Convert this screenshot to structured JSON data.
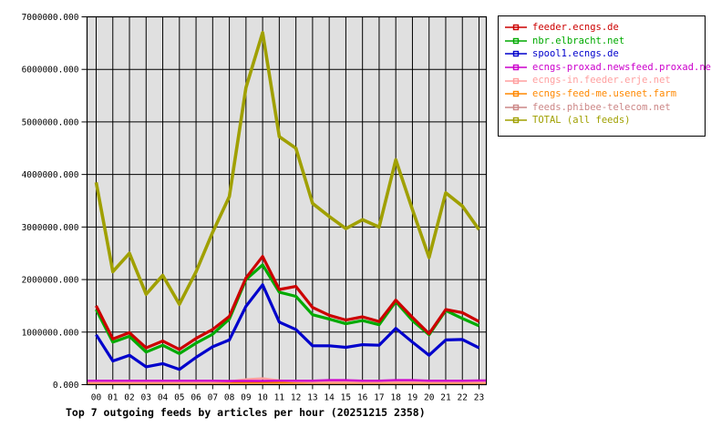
{
  "title": "Top 7 outgoing feeds by articles per hour (20251215 2358)",
  "chart_data": {
    "type": "line",
    "title": "Top 7 outgoing feeds by articles per hour (20251215 2358)",
    "xlabel": "",
    "ylabel": "",
    "ylim": [
      0,
      7000000
    ],
    "grid": true,
    "plot_bg": "#e0e0e0",
    "legend_position": "outside-top-right",
    "x": [
      0,
      1,
      2,
      3,
      4,
      5,
      6,
      7,
      8,
      9,
      10,
      11,
      12,
      13,
      14,
      15,
      16,
      17,
      18,
      19,
      20,
      21,
      22,
      23
    ],
    "x_tick_labels": [
      "00",
      "01",
      "02",
      "03",
      "04",
      "05",
      "06",
      "07",
      "08",
      "09",
      "10",
      "11",
      "12",
      "13",
      "14",
      "15",
      "16",
      "17",
      "18",
      "19",
      "20",
      "21",
      "22",
      "23"
    ],
    "y_tick_labels": [
      "0.000",
      "1000000.000",
      "2000000.000",
      "3000000.000",
      "4000000.000",
      "5000000.000",
      "6000000.000",
      "7000000.000"
    ],
    "series": [
      {
        "name": "feeder.ecngs.de",
        "color": "#cc0000",
        "full_width": false,
        "values": [
          1500000,
          870000,
          990000,
          700000,
          830000,
          670000,
          880000,
          1050000,
          1300000,
          2030000,
          2440000,
          1810000,
          1870000,
          1470000,
          1320000,
          1230000,
          1290000,
          1200000,
          1610000,
          1280000,
          970000,
          1430000,
          1370000,
          1200000
        ]
      },
      {
        "name": "nbr.elbracht.net",
        "color": "#00aa00",
        "full_width": false,
        "values": [
          1430000,
          810000,
          920000,
          620000,
          750000,
          590000,
          790000,
          960000,
          1250000,
          2000000,
          2280000,
          1760000,
          1680000,
          1330000,
          1250000,
          1160000,
          1220000,
          1140000,
          1580000,
          1220000,
          950000,
          1410000,
          1260000,
          1120000
        ]
      },
      {
        "name": "spool1.ecngs.de",
        "color": "#0000cc",
        "full_width": false,
        "values": [
          950000,
          450000,
          560000,
          340000,
          400000,
          290000,
          520000,
          720000,
          850000,
          1490000,
          1900000,
          1190000,
          1050000,
          740000,
          740000,
          710000,
          760000,
          750000,
          1070000,
          810000,
          560000,
          850000,
          860000,
          700000
        ]
      },
      {
        "name": "ecngs-proxad.newsfeed.proxad.net",
        "color": "#cc00cc",
        "full_width": true,
        "values": [
          75000,
          75000,
          75000,
          75000,
          75000,
          75000,
          75000,
          75000,
          70000,
          70000,
          70000,
          75000,
          75000,
          75000,
          85000,
          85000,
          75000,
          75000,
          85000,
          85000,
          75000,
          75000,
          75000,
          80000
        ]
      },
      {
        "name": "ecngs-in.feeder.erje.net",
        "color": "#ff9f9f",
        "full_width": true,
        "values": [
          50000,
          50000,
          50000,
          50000,
          50000,
          50000,
          50000,
          50000,
          60000,
          100000,
          120000,
          80000,
          60000,
          50000,
          50000,
          50000,
          50000,
          50000,
          50000,
          50000,
          50000,
          50000,
          50000,
          50000
        ]
      },
      {
        "name": "ecngs-feed-me.usenet.farm",
        "color": "#ff8800",
        "full_width": true,
        "values": [
          40000,
          40000,
          40000,
          40000,
          40000,
          40000,
          40000,
          40000,
          40000,
          40000,
          40000,
          40000,
          40000,
          40000,
          40000,
          40000,
          40000,
          40000,
          40000,
          40000,
          40000,
          40000,
          40000,
          40000
        ]
      },
      {
        "name": "feeds.phibee-telecom.net",
        "color": "#cc8787",
        "full_width": true,
        "values": [
          30000,
          30000,
          30000,
          30000,
          30000,
          30000,
          30000,
          30000,
          30000,
          30000,
          30000,
          30000,
          30000,
          30000,
          30000,
          30000,
          30000,
          30000,
          30000,
          30000,
          30000,
          30000,
          30000,
          30000
        ]
      },
      {
        "name": "TOTAL (all feeds)",
        "color": "#a0a000",
        "full_width": false,
        "values": [
          3850000,
          2150000,
          2500000,
          1720000,
          2080000,
          1530000,
          2150000,
          2900000,
          3580000,
          5650000,
          6700000,
          4720000,
          4500000,
          3450000,
          3200000,
          2970000,
          3140000,
          3000000,
          4280000,
          3330000,
          2420000,
          3650000,
          3400000,
          2950000
        ]
      }
    ]
  }
}
